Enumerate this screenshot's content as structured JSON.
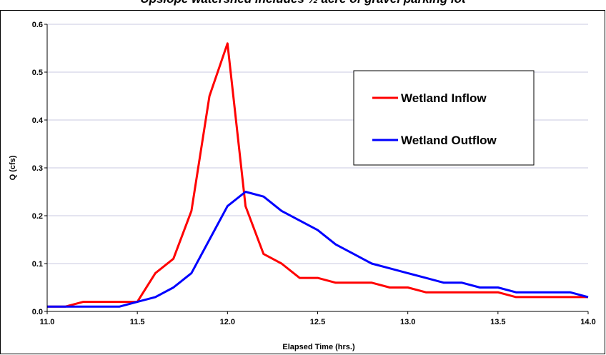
{
  "title": "Upslope watershed includes ½ acre of gravel parking lot",
  "chart_data": {
    "type": "line",
    "title": "Upslope watershed includes ½ acre of gravel parking lot",
    "xlabel": "Elapsed Time (hrs.)",
    "ylabel": "Q (cfs)",
    "xlim": [
      11.0,
      14.0
    ],
    "ylim": [
      0,
      0.6
    ],
    "x_ticks": [
      "11.0",
      "11.5",
      "12.0",
      "12.5",
      "13.0",
      "13.5",
      "14.0"
    ],
    "y_ticks": [
      "0.0",
      "0.1",
      "0.2",
      "0.3",
      "0.4",
      "0.5",
      "0.6"
    ],
    "grid": true,
    "legend_position": "top-right",
    "x": [
      11.0,
      11.1,
      11.2,
      11.3,
      11.4,
      11.5,
      11.6,
      11.7,
      11.8,
      11.9,
      12.0,
      12.1,
      12.2,
      12.3,
      12.4,
      12.5,
      12.6,
      12.7,
      12.8,
      12.9,
      13.0,
      13.1,
      13.2,
      13.3,
      13.4,
      13.5,
      13.6,
      13.7,
      13.8,
      13.9,
      14.0
    ],
    "series": [
      {
        "name": "Wetland Inflow",
        "color": "#ff0000",
        "values": [
          0.01,
          0.01,
          0.02,
          0.02,
          0.02,
          0.02,
          0.08,
          0.11,
          0.21,
          0.45,
          0.56,
          0.22,
          0.12,
          0.1,
          0.07,
          0.07,
          0.06,
          0.06,
          0.06,
          0.05,
          0.05,
          0.04,
          0.04,
          0.04,
          0.04,
          0.04,
          0.03,
          0.03,
          0.03,
          0.03,
          0.03
        ]
      },
      {
        "name": "Wetland Outflow",
        "color": "#0000ff",
        "values": [
          0.01,
          0.01,
          0.01,
          0.01,
          0.01,
          0.02,
          0.03,
          0.05,
          0.08,
          0.15,
          0.22,
          0.25,
          0.24,
          0.21,
          0.19,
          0.17,
          0.14,
          0.12,
          0.1,
          0.09,
          0.08,
          0.07,
          0.06,
          0.06,
          0.05,
          0.05,
          0.04,
          0.04,
          0.04,
          0.04,
          0.03
        ]
      }
    ]
  }
}
